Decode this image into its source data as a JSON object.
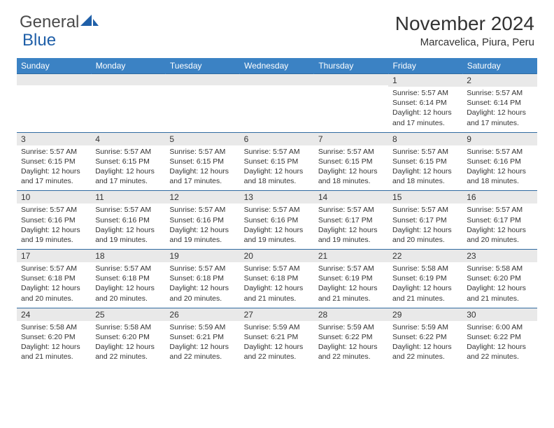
{
  "brand": {
    "part1": "General",
    "part2": "Blue"
  },
  "title": "November 2024",
  "location": "Marcavelica, Piura, Peru",
  "colors": {
    "header_bg": "#3b82c4",
    "header_text": "#ffffff",
    "daynum_bg": "#e9e9e9",
    "border": "#2f6aa0",
    "text": "#333333",
    "logo_gray": "#4a4a4a",
    "logo_blue": "#1f5fa8"
  },
  "days_of_week": [
    "Sunday",
    "Monday",
    "Tuesday",
    "Wednesday",
    "Thursday",
    "Friday",
    "Saturday"
  ],
  "weeks": [
    [
      null,
      null,
      null,
      null,
      null,
      {
        "n": "1",
        "sr": "5:57 AM",
        "ss": "6:14 PM",
        "dl": "12 hours and 17 minutes."
      },
      {
        "n": "2",
        "sr": "5:57 AM",
        "ss": "6:14 PM",
        "dl": "12 hours and 17 minutes."
      }
    ],
    [
      {
        "n": "3",
        "sr": "5:57 AM",
        "ss": "6:15 PM",
        "dl": "12 hours and 17 minutes."
      },
      {
        "n": "4",
        "sr": "5:57 AM",
        "ss": "6:15 PM",
        "dl": "12 hours and 17 minutes."
      },
      {
        "n": "5",
        "sr": "5:57 AM",
        "ss": "6:15 PM",
        "dl": "12 hours and 17 minutes."
      },
      {
        "n": "6",
        "sr": "5:57 AM",
        "ss": "6:15 PM",
        "dl": "12 hours and 18 minutes."
      },
      {
        "n": "7",
        "sr": "5:57 AM",
        "ss": "6:15 PM",
        "dl": "12 hours and 18 minutes."
      },
      {
        "n": "8",
        "sr": "5:57 AM",
        "ss": "6:15 PM",
        "dl": "12 hours and 18 minutes."
      },
      {
        "n": "9",
        "sr": "5:57 AM",
        "ss": "6:16 PM",
        "dl": "12 hours and 18 minutes."
      }
    ],
    [
      {
        "n": "10",
        "sr": "5:57 AM",
        "ss": "6:16 PM",
        "dl": "12 hours and 19 minutes."
      },
      {
        "n": "11",
        "sr": "5:57 AM",
        "ss": "6:16 PM",
        "dl": "12 hours and 19 minutes."
      },
      {
        "n": "12",
        "sr": "5:57 AM",
        "ss": "6:16 PM",
        "dl": "12 hours and 19 minutes."
      },
      {
        "n": "13",
        "sr": "5:57 AM",
        "ss": "6:16 PM",
        "dl": "12 hours and 19 minutes."
      },
      {
        "n": "14",
        "sr": "5:57 AM",
        "ss": "6:17 PM",
        "dl": "12 hours and 19 minutes."
      },
      {
        "n": "15",
        "sr": "5:57 AM",
        "ss": "6:17 PM",
        "dl": "12 hours and 20 minutes."
      },
      {
        "n": "16",
        "sr": "5:57 AM",
        "ss": "6:17 PM",
        "dl": "12 hours and 20 minutes."
      }
    ],
    [
      {
        "n": "17",
        "sr": "5:57 AM",
        "ss": "6:18 PM",
        "dl": "12 hours and 20 minutes."
      },
      {
        "n": "18",
        "sr": "5:57 AM",
        "ss": "6:18 PM",
        "dl": "12 hours and 20 minutes."
      },
      {
        "n": "19",
        "sr": "5:57 AM",
        "ss": "6:18 PM",
        "dl": "12 hours and 20 minutes."
      },
      {
        "n": "20",
        "sr": "5:57 AM",
        "ss": "6:18 PM",
        "dl": "12 hours and 21 minutes."
      },
      {
        "n": "21",
        "sr": "5:57 AM",
        "ss": "6:19 PM",
        "dl": "12 hours and 21 minutes."
      },
      {
        "n": "22",
        "sr": "5:58 AM",
        "ss": "6:19 PM",
        "dl": "12 hours and 21 minutes."
      },
      {
        "n": "23",
        "sr": "5:58 AM",
        "ss": "6:20 PM",
        "dl": "12 hours and 21 minutes."
      }
    ],
    [
      {
        "n": "24",
        "sr": "5:58 AM",
        "ss": "6:20 PM",
        "dl": "12 hours and 21 minutes."
      },
      {
        "n": "25",
        "sr": "5:58 AM",
        "ss": "6:20 PM",
        "dl": "12 hours and 22 minutes."
      },
      {
        "n": "26",
        "sr": "5:59 AM",
        "ss": "6:21 PM",
        "dl": "12 hours and 22 minutes."
      },
      {
        "n": "27",
        "sr": "5:59 AM",
        "ss": "6:21 PM",
        "dl": "12 hours and 22 minutes."
      },
      {
        "n": "28",
        "sr": "5:59 AM",
        "ss": "6:22 PM",
        "dl": "12 hours and 22 minutes."
      },
      {
        "n": "29",
        "sr": "5:59 AM",
        "ss": "6:22 PM",
        "dl": "12 hours and 22 minutes."
      },
      {
        "n": "30",
        "sr": "6:00 AM",
        "ss": "6:22 PM",
        "dl": "12 hours and 22 minutes."
      }
    ]
  ],
  "labels": {
    "sunrise": "Sunrise: ",
    "sunset": "Sunset: ",
    "daylight": "Daylight: "
  }
}
